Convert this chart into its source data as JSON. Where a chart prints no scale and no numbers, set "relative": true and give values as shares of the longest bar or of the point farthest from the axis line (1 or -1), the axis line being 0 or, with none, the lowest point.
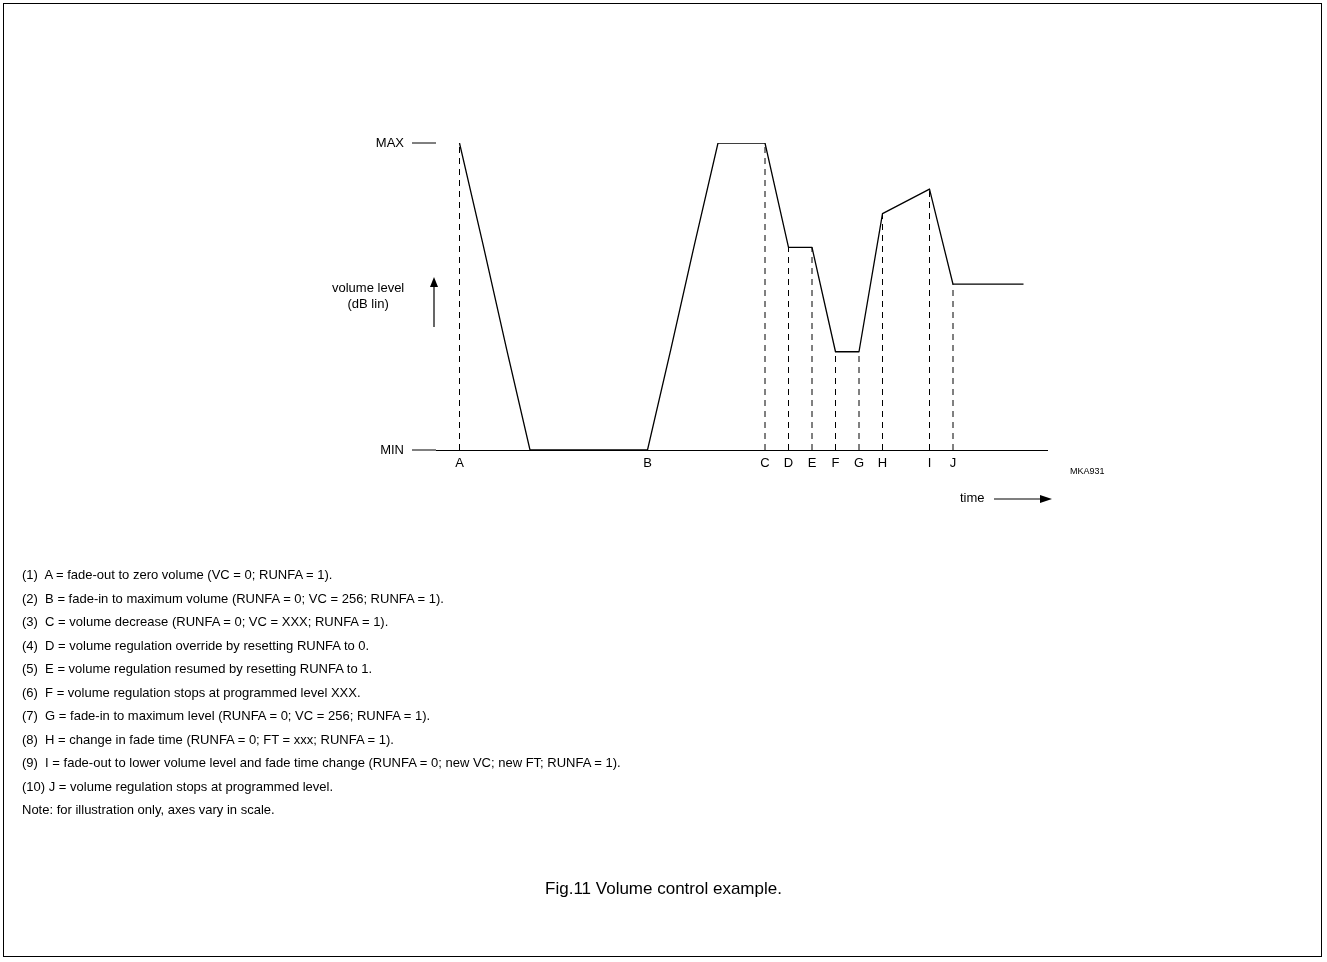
{
  "chart_data": {
    "type": "line",
    "title": "Fig.11  Volume control example.",
    "xlabel": "time",
    "ylabel": "volume level\n(dB lin)",
    "relative": true,
    "categories": [
      null,
      "A",
      null,
      null,
      null,
      null,
      null,
      null,
      null,
      "B",
      null,
      null,
      null,
      null,
      "C",
      "D",
      "E",
      "F",
      "G",
      "H",
      null,
      "I",
      "J",
      null,
      null,
      null,
      null
    ],
    "series": [
      {
        "color": "#000000",
        "values": [
          null,
          1,
          0.67,
          0.33,
          0,
          0,
          0,
          0,
          0,
          0,
          0.33,
          0.67,
          1,
          1,
          1,
          0.66,
          0.66,
          0.32,
          0.32,
          0.77,
          0.81,
          0.85,
          0.54,
          0.54,
          0.54,
          0.54,
          null
        ]
      }
    ],
    "ref_lines": [
      {
        "axis": "x",
        "value": "A",
        "line_style": "dashed"
      },
      {
        "axis": "x",
        "value": "C",
        "line_style": "dashed"
      },
      {
        "axis": "x",
        "value": "D",
        "line_style": "dashed"
      },
      {
        "axis": "x",
        "value": "E",
        "line_style": "dashed"
      },
      {
        "axis": "x",
        "value": "F",
        "line_style": "dashed"
      },
      {
        "axis": "x",
        "value": "G",
        "line_style": "dashed"
      },
      {
        "axis": "x",
        "value": "H",
        "line_style": "dashed"
      },
      {
        "axis": "x",
        "value": "I",
        "line_style": "dashed"
      },
      {
        "axis": "x",
        "value": "J",
        "line_style": "dashed"
      }
    ],
    "grid": false,
    "legend": false,
    "marker": "none",
    "line_style": "solid",
    "annotations": [
      "MAX",
      "MIN",
      "MKA931",
      "(1)  A = fade-out to zero volume (VC = 0; RUNFA = 1).",
      "(2)  B = fade-in to maximum volume (RUNFA = 0; VC = 256; RUNFA = 1).",
      "(3)  C = volume decrease (RUNFA = 0; VC = XXX; RUNFA = 1).",
      "(4)  D = volume regulation override by resetting RUNFA to 0.",
      "(5)  E = volume regulation resumed by resetting RUNFA to 1.",
      "(6)  F = volume regulation stops at programmed level XXX.",
      "(7)  G = fade-in to maximum level (RUNFA = 0; VC = 256; RUNFA = 1).",
      "(8)  H = change in fade time (RUNFA = 0; FT = xxx; RUNFA = 1).",
      "(9)  I = fade-out to lower volume level and fade time change (RUNFA = 0; new VC; new FT; RUNFA = 1).",
      "(10) J = volume regulation stops at programmed level.",
      "Note: for illustration only, axes vary in scale."
    ]
  }
}
